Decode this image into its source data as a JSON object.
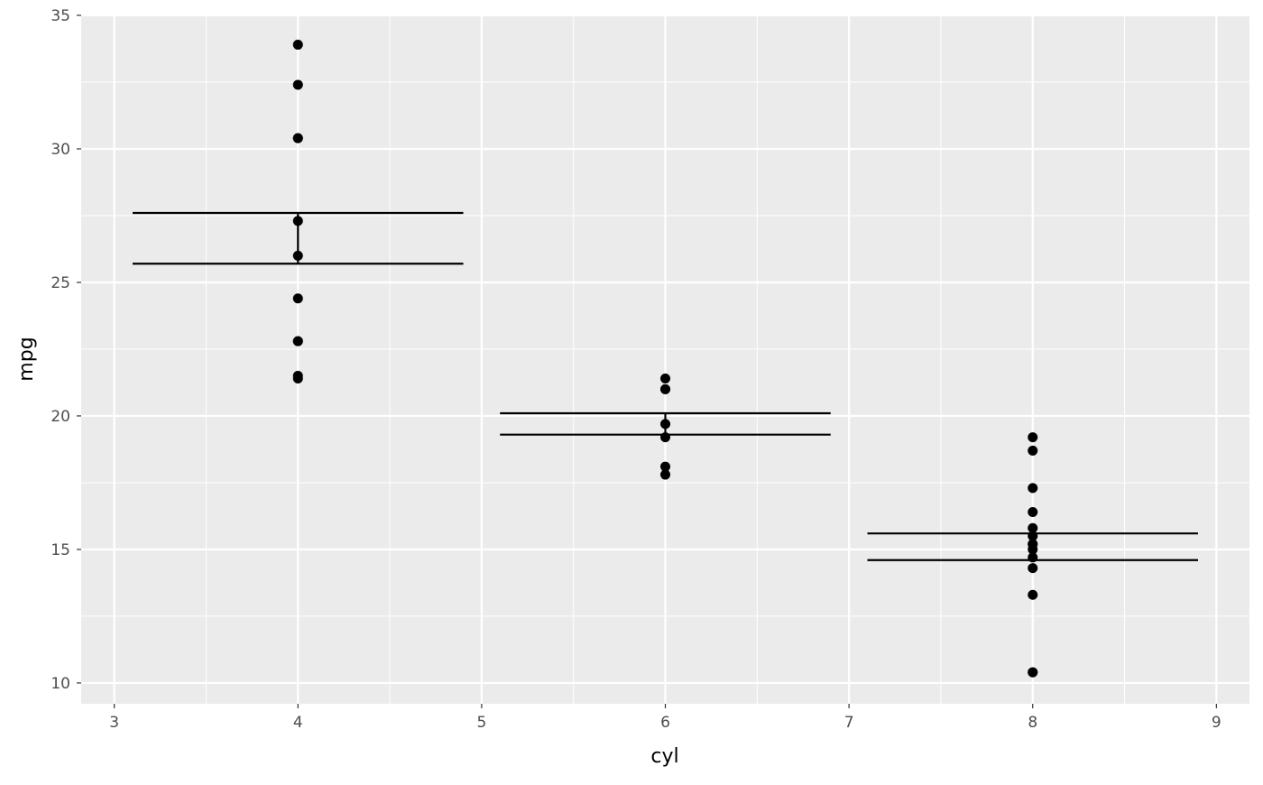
{
  "chart_data": {
    "type": "scatter",
    "x_label": "cyl",
    "y_label": "mpg",
    "x": [
      4,
      4,
      4,
      4,
      4,
      4,
      4,
      4,
      4,
      4,
      4,
      6,
      6,
      6,
      6,
      6,
      6,
      6,
      8,
      8,
      8,
      8,
      8,
      8,
      8,
      8,
      8,
      8,
      8,
      8,
      8,
      8
    ],
    "values": [
      22.8,
      24.4,
      22.8,
      32.4,
      30.4,
      33.9,
      21.5,
      27.3,
      26.0,
      30.4,
      21.4,
      21.0,
      21.0,
      21.4,
      18.1,
      19.2,
      17.8,
      19.7,
      18.7,
      14.3,
      16.4,
      17.3,
      15.2,
      10.4,
      10.4,
      14.7,
      15.5,
      15.2,
      13.3,
      19.2,
      15.8,
      15.0
    ],
    "color": "#000000",
    "errorbars": {
      "x": [
        4,
        6,
        8
      ],
      "ymin": [
        25.7,
        19.3,
        14.6
      ],
      "ymax": [
        27.6,
        20.1,
        15.6
      ],
      "color": "#000000"
    },
    "xlim": [
      2.82,
      9.18
    ],
    "ylim": [
      9.22,
      35.0
    ],
    "xticks": [
      3,
      4,
      5,
      6,
      7,
      8,
      9
    ],
    "yticks": [
      10,
      15,
      20,
      25,
      30,
      35
    ],
    "grid": true
  }
}
